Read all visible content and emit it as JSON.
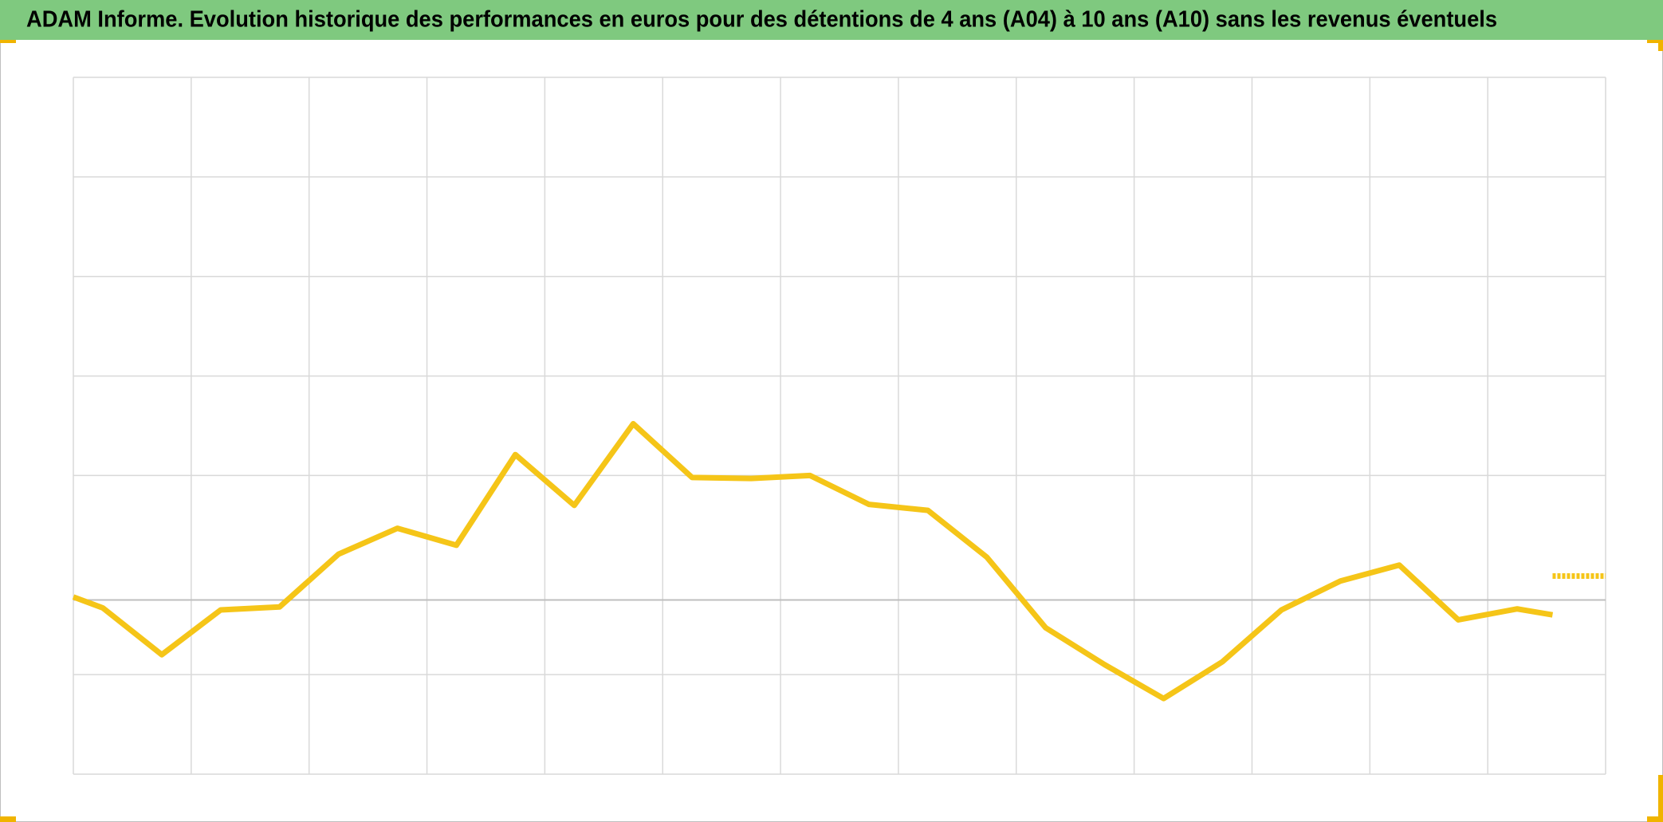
{
  "chart_data": {
    "type": "line",
    "title": "ADAM Informe. Evolution historique des performances en euros pour des détentions de 4 ans (A04) à 10 ans (A10) sans les revenus éventuels",
    "xlim": [
      0,
      26
    ],
    "xticks": [
      0,
      2,
      4,
      6,
      8,
      10,
      12,
      14,
      16,
      18,
      20,
      22,
      24,
      26
    ],
    "ylim": [
      0,
      7
    ],
    "yticks": [
      0,
      1,
      3,
      4,
      5,
      6,
      7
    ],
    "baseline": 1.75,
    "grid": true,
    "series": [
      {
        "color": "#f5c518",
        "style": "solid",
        "x": [
          0,
          0.5,
          1.5,
          2.5,
          3.5,
          4.5,
          5.5,
          6.5,
          7.5,
          8.5,
          9.5,
          10.5,
          11.5,
          12.5,
          13.5,
          14.5,
          15.5,
          16.5,
          17.5,
          18.5,
          19.5,
          20.5,
          21.5,
          22.5,
          23.5,
          24.5,
          25.1
        ],
        "values": [
          1.78,
          1.67,
          1.2,
          1.65,
          1.68,
          2.21,
          2.47,
          2.3,
          3.21,
          2.7,
          3.52,
          2.98,
          2.97,
          3.0,
          2.71,
          2.65,
          2.18,
          1.47,
          1.1,
          0.76,
          1.13,
          1.65,
          1.94,
          2.1,
          1.55,
          1.66,
          1.6
        ]
      },
      {
        "color": "#f5c518",
        "style": "dashed",
        "x": [
          25.1,
          26
        ],
        "values": [
          1.99,
          1.99
        ]
      }
    ]
  }
}
